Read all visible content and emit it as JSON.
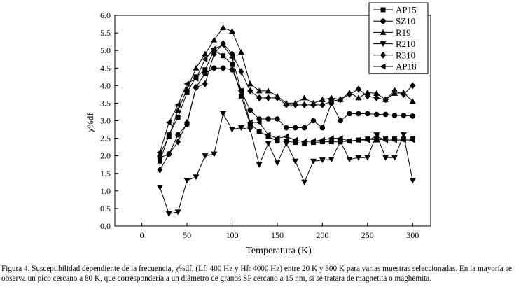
{
  "chart_data": {
    "type": "line",
    "title": "",
    "xlabel": "Temperatura (K)",
    "ylabel": "χ%df",
    "xlim": [
      -30,
      320
    ],
    "ylim": [
      0,
      6
    ],
    "xticks": [
      0,
      50,
      100,
      150,
      200,
      250,
      300
    ],
    "yticks": [
      "0.0",
      "0.5",
      "1.0",
      "1.5",
      "2.0",
      "2.5",
      "3.0",
      "3.5",
      "4.0",
      "4.5",
      "5.0",
      "5.5",
      "6.0"
    ],
    "legend_position": "top-right",
    "grid": false,
    "x": [
      20,
      30,
      40,
      50,
      60,
      70,
      80,
      90,
      100,
      110,
      120,
      130,
      140,
      150,
      160,
      170,
      180,
      190,
      200,
      210,
      220,
      230,
      240,
      250,
      260,
      270,
      280,
      290,
      300
    ],
    "series": [
      {
        "name": "AP15",
        "marker": "square",
        "values": [
          1.85,
          2.6,
          3.1,
          3.8,
          4.25,
          4.45,
          5.0,
          4.85,
          4.6,
          3.7,
          2.9,
          2.7,
          2.55,
          2.42,
          2.42,
          2.38,
          2.35,
          2.38,
          2.4,
          2.4,
          2.4,
          2.42,
          2.45,
          2.48,
          2.45,
          2.48,
          2.48,
          2.48,
          2.48
        ]
      },
      {
        "name": "SZ10",
        "marker": "circle",
        "values": [
          1.95,
          2.05,
          2.6,
          2.9,
          3.95,
          4.35,
          4.5,
          4.5,
          4.45,
          3.85,
          3.3,
          3.05,
          3.05,
          3.05,
          2.8,
          2.8,
          2.8,
          3.0,
          2.8,
          3.5,
          3.0,
          3.2,
          3.2,
          3.2,
          3.18,
          3.18,
          3.15,
          3.15,
          3.13
        ]
      },
      {
        "name": "R19",
        "marker": "triangle-up",
        "values": [
          2.05,
          2.55,
          3.3,
          3.9,
          4.5,
          4.9,
          5.3,
          5.65,
          5.55,
          4.95,
          4.05,
          3.85,
          3.85,
          3.7,
          3.5,
          3.5,
          3.65,
          3.5,
          3.6,
          3.65,
          3.6,
          3.8,
          3.65,
          3.8,
          3.78,
          3.6,
          3.78,
          3.8,
          3.55
        ]
      },
      {
        "name": "R210",
        "marker": "triangle-down",
        "values": [
          1.1,
          0.35,
          0.4,
          1.3,
          1.4,
          2.0,
          2.05,
          3.2,
          2.75,
          2.8,
          2.75,
          1.75,
          2.35,
          1.8,
          2.35,
          1.85,
          1.25,
          1.85,
          1.88,
          1.9,
          2.4,
          1.9,
          1.95,
          1.95,
          2.6,
          1.95,
          1.95,
          2.6,
          1.3
        ]
      },
      {
        "name": "R310",
        "marker": "diamond",
        "values": [
          1.6,
          2.05,
          2.4,
          2.95,
          3.95,
          4.05,
          4.9,
          5.2,
          4.9,
          4.4,
          3.85,
          3.65,
          3.65,
          3.65,
          3.45,
          3.45,
          3.45,
          3.45,
          3.45,
          3.55,
          3.6,
          3.75,
          3.9,
          3.7,
          3.65,
          3.6,
          3.85,
          3.75,
          4.0
        ]
      },
      {
        "name": "AP18",
        "marker": "triangle-left",
        "values": [
          2.1,
          2.95,
          3.45,
          4.05,
          4.2,
          4.75,
          5.05,
          5.15,
          4.8,
          3.85,
          2.95,
          2.95,
          2.6,
          2.5,
          2.55,
          2.45,
          2.4,
          2.42,
          2.45,
          2.5,
          2.5,
          2.42,
          2.45,
          2.45,
          2.55,
          2.45,
          2.45,
          2.45,
          2.45
        ]
      }
    ]
  },
  "caption": "Figura 4. Susceptibilidad dependiente de la frecuencia, χ%df, (Lf: 400 Hz y Hf: 4000 Hz) entre 20 K y 300 K para varias muestras seleccionadas. En la mayoría se observa un pico cercano a 80 K, que correspondería a un diámetro de granos SP cercano a 15 nm, si se tratara de magnetita o maghemita."
}
